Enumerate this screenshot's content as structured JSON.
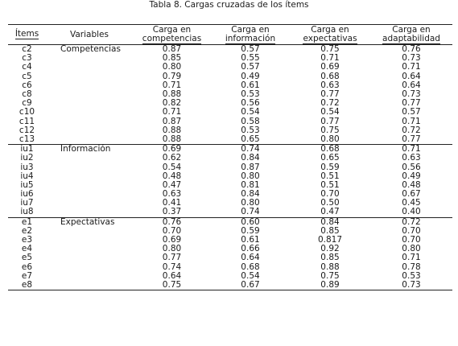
{
  "title": "Tabla 8. Cargas cruzadas de los ítems",
  "headers": {
    "item": "Ítems",
    "variable": "Variables",
    "comp": [
      "Carga en",
      "competencias"
    ],
    "info": [
      "Carga en",
      "información"
    ],
    "exp": [
      "Carga en",
      "expectativas"
    ],
    "adap": [
      "Carga en",
      "adaptabilidad"
    ]
  },
  "rows": [
    {
      "item": "c2",
      "variable": "Competencias",
      "v": [
        "0.87",
        "0.57",
        "0.75",
        "0.76"
      ]
    },
    {
      "item": "c3",
      "variable": "",
      "v": [
        "0.85",
        "0.55",
        "0.71",
        "0.73"
      ]
    },
    {
      "item": "c4",
      "variable": "",
      "v": [
        "0.80",
        "0.57",
        "0.69",
        "0.71"
      ]
    },
    {
      "item": "c5",
      "variable": "",
      "v": [
        "0.79",
        "0.49",
        "0.68",
        "0.64"
      ]
    },
    {
      "item": "c6",
      "variable": "",
      "v": [
        "0.71",
        "0.61",
        "0.63",
        "0.64"
      ]
    },
    {
      "item": "c8",
      "variable": "",
      "v": [
        "0.88",
        "0.53",
        "0.77",
        "0.73"
      ]
    },
    {
      "item": "c9",
      "variable": "",
      "v": [
        "0.82",
        "0.56",
        "0.72",
        "0.77"
      ]
    },
    {
      "item": "c10",
      "variable": "",
      "v": [
        "0.71",
        "0.54",
        "0.54",
        "0.57"
      ]
    },
    {
      "item": "c11",
      "variable": "",
      "v": [
        "0.87",
        "0.58",
        "0.77",
        "0.71"
      ]
    },
    {
      "item": "c12",
      "variable": "",
      "v": [
        "0.88",
        "0.53",
        "0.75",
        "0.72"
      ]
    },
    {
      "item": "c13",
      "variable": "",
      "v": [
        "0.88",
        "0.65",
        "0.80",
        "0.77"
      ]
    },
    {
      "item": "iu1",
      "variable": "Información",
      "v": [
        "0.69",
        "0.74",
        "0.68",
        "0.71"
      ]
    },
    {
      "item": "iu2",
      "variable": "",
      "v": [
        "0.62",
        "0.84",
        "0.65",
        "0.63"
      ]
    },
    {
      "item": "iu3",
      "variable": "",
      "v": [
        "0.54",
        "0.87",
        "0.59",
        "0.56"
      ]
    },
    {
      "item": "iu4",
      "variable": "",
      "v": [
        "0.48",
        "0.80",
        "0.51",
        "0.49"
      ]
    },
    {
      "item": "iu5",
      "variable": "",
      "v": [
        "0.47",
        "0.81",
        "0.51",
        "0.48"
      ]
    },
    {
      "item": "iu6",
      "variable": "",
      "v": [
        "0.63",
        "0.84",
        "0.70",
        "0.67"
      ]
    },
    {
      "item": "iu7",
      "variable": "",
      "v": [
        "0.41",
        "0.80",
        "0.50",
        "0.45"
      ]
    },
    {
      "item": "iu8",
      "variable": "",
      "v": [
        "0.37",
        "0.74",
        "0.47",
        "0.40"
      ]
    },
    {
      "item": "e1",
      "variable": "Expectativas",
      "v": [
        "0.76",
        "0.60",
        "0.84",
        "0.72"
      ]
    },
    {
      "item": "e2",
      "variable": "",
      "v": [
        "0.70",
        "0.59",
        "0.85",
        "0.70"
      ]
    },
    {
      "item": "e3",
      "variable": "",
      "v": [
        "0.69",
        "0.61",
        "0.817",
        "0.70"
      ]
    },
    {
      "item": "e4",
      "variable": "",
      "v": [
        "0.80",
        "0.66",
        "0.92",
        "0.80"
      ]
    },
    {
      "item": "e5",
      "variable": "",
      "v": [
        "0.77",
        "0.64",
        "0.85",
        "0.71"
      ]
    },
    {
      "item": "e6",
      "variable": "",
      "v": [
        "0.74",
        "0.68",
        "0.88",
        "0.78"
      ]
    },
    {
      "item": "e7",
      "variable": "",
      "v": [
        "0.64",
        "0.54",
        "0.75",
        "0.53"
      ]
    },
    {
      "item": "e8",
      "variable": "",
      "v": [
        "0.75",
        "0.67",
        "0.89",
        "0.73"
      ]
    }
  ]
}
